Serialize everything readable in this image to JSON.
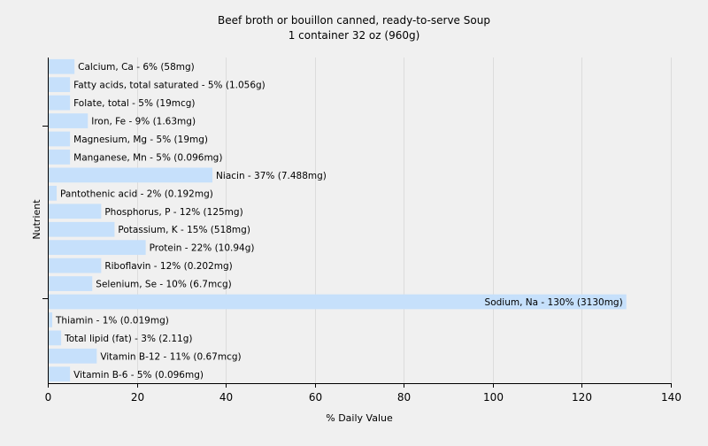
{
  "chart_data": {
    "type": "bar",
    "orientation": "horizontal",
    "title": "Beef broth or bouillon canned, ready-to-serve Soup",
    "subtitle": "1 container 32 oz (960g)",
    "xlabel": "% Daily Value",
    "ylabel": "Nutrient",
    "xlim": [
      0,
      140
    ],
    "xticks": [
      "0",
      "20",
      "40",
      "60",
      "80",
      "100",
      "120",
      "140"
    ],
    "grid": true,
    "bar_color": "#c6e0fb",
    "categories": [
      "Calcium, Ca - 6% (58mg)",
      "Fatty acids, total saturated - 5% (1.056g)",
      "Folate, total - 5% (19mcg)",
      "Iron, Fe - 9% (1.63mg)",
      "Magnesium, Mg - 5% (19mg)",
      "Manganese, Mn - 5% (0.096mg)",
      "Niacin - 37% (7.488mg)",
      "Pantothenic acid - 2% (0.192mg)",
      "Phosphorus, P - 12% (125mg)",
      "Potassium, K - 15% (518mg)",
      "Protein - 22% (10.94g)",
      "Riboflavin - 12% (0.202mg)",
      "Selenium, Se - 10% (6.7mcg)",
      "Sodium, Na - 130% (3130mg)",
      "Thiamin - 1% (0.019mg)",
      "Total lipid (fat) - 3% (2.11g)",
      "Vitamin B-12 - 11% (0.67mcg)",
      "Vitamin B-6 - 5% (0.096mg)"
    ],
    "values": [
      6,
      5,
      5,
      9,
      5,
      5,
      37,
      2,
      12,
      15,
      22,
      12,
      10,
      130,
      1,
      3,
      11,
      5
    ]
  }
}
